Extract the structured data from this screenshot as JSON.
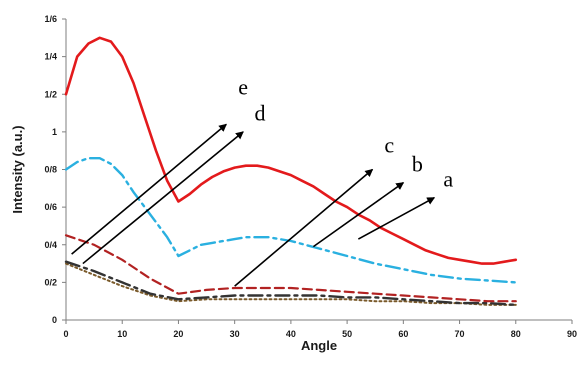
{
  "chart_data": {
    "type": "line",
    "title": "",
    "xlabel": "Angle",
    "ylabel": "Intensity (a.u.)",
    "xlim": [
      0,
      90
    ],
    "ylim": [
      0,
      1.6
    ],
    "x_ticks": [
      0,
      10,
      20,
      30,
      40,
      50,
      60,
      70,
      80,
      90
    ],
    "x_tick_labels": [
      "0",
      "10",
      "20",
      "30",
      "40",
      "50",
      "60",
      "70",
      "80",
      "90"
    ],
    "y_ticks": [
      0,
      0.2,
      0.4,
      0.6,
      0.8,
      1.0,
      1.2,
      1.4,
      1.6
    ],
    "y_tick_labels": [
      "0",
      "0/2",
      "0/4",
      "0/6",
      "0/8",
      "1",
      "1/2",
      "1/4",
      "1/6"
    ],
    "grid": false,
    "series": [
      {
        "name": "e",
        "color": "#e31a1c",
        "style": "solid",
        "x": [
          0,
          2,
          4,
          6,
          8,
          10,
          12,
          14,
          16,
          18,
          20,
          22,
          24,
          26,
          28,
          30,
          32,
          34,
          36,
          38,
          40,
          42,
          44,
          46,
          48,
          50,
          52,
          54,
          56,
          58,
          60,
          62,
          64,
          66,
          68,
          70,
          72,
          74,
          76,
          78,
          80
        ],
        "y": [
          1.2,
          1.4,
          1.47,
          1.5,
          1.48,
          1.4,
          1.26,
          1.08,
          0.9,
          0.74,
          0.63,
          0.67,
          0.72,
          0.76,
          0.79,
          0.81,
          0.82,
          0.82,
          0.81,
          0.79,
          0.77,
          0.74,
          0.71,
          0.67,
          0.63,
          0.6,
          0.56,
          0.53,
          0.49,
          0.46,
          0.43,
          0.4,
          0.37,
          0.35,
          0.33,
          0.32,
          0.31,
          0.3,
          0.3,
          0.31,
          0.32
        ]
      },
      {
        "name": "d",
        "color": "#2ab0e0",
        "style": "dash-dot",
        "x": [
          0,
          2,
          4,
          6,
          8,
          10,
          12,
          14,
          16,
          18,
          20,
          22,
          24,
          26,
          28,
          30,
          32,
          34,
          36,
          38,
          40,
          45,
          50,
          55,
          60,
          65,
          70,
          75,
          80
        ],
        "y": [
          0.8,
          0.84,
          0.86,
          0.86,
          0.83,
          0.77,
          0.68,
          0.6,
          0.52,
          0.44,
          0.34,
          0.37,
          0.4,
          0.41,
          0.42,
          0.43,
          0.44,
          0.44,
          0.44,
          0.43,
          0.42,
          0.38,
          0.34,
          0.3,
          0.27,
          0.24,
          0.22,
          0.21,
          0.2
        ]
      },
      {
        "name": "c",
        "color": "#b22222",
        "style": "dash",
        "x": [
          0,
          5,
          10,
          15,
          20,
          25,
          30,
          35,
          40,
          45,
          50,
          55,
          60,
          65,
          70,
          75,
          80
        ],
        "y": [
          0.45,
          0.4,
          0.32,
          0.22,
          0.14,
          0.16,
          0.17,
          0.17,
          0.17,
          0.16,
          0.15,
          0.14,
          0.13,
          0.12,
          0.11,
          0.1,
          0.1
        ]
      },
      {
        "name": "b",
        "color": "#333333",
        "style": "dash-dot",
        "x": [
          0,
          5,
          10,
          15,
          20,
          25,
          30,
          35,
          40,
          45,
          50,
          55,
          60,
          65,
          70,
          75,
          80
        ],
        "y": [
          0.31,
          0.26,
          0.2,
          0.14,
          0.11,
          0.12,
          0.13,
          0.13,
          0.13,
          0.13,
          0.12,
          0.12,
          0.11,
          0.1,
          0.09,
          0.09,
          0.08
        ]
      },
      {
        "name": "a",
        "color": "#7a5a2a",
        "style": "dot",
        "x": [
          0,
          5,
          10,
          15,
          20,
          25,
          30,
          35,
          40,
          45,
          50,
          55,
          60,
          65,
          70,
          75,
          80
        ],
        "y": [
          0.3,
          0.24,
          0.18,
          0.13,
          0.1,
          0.11,
          0.11,
          0.11,
          0.11,
          0.11,
          0.11,
          0.1,
          0.1,
          0.09,
          0.09,
          0.08,
          0.08
        ]
      }
    ],
    "annotations": [
      {
        "text": "e",
        "arrow_from": [
          1,
          0.35
        ],
        "arrow_to": [
          28.5,
          1.04
        ],
        "label_at": [
          31.5,
          1.2
        ]
      },
      {
        "text": "d",
        "arrow_from": [
          3,
          0.3
        ],
        "arrow_to": [
          31.5,
          1.0
        ],
        "label_at": [
          34.5,
          1.06
        ]
      },
      {
        "text": "c",
        "arrow_from": [
          30,
          0.18
        ],
        "arrow_to": [
          54.5,
          0.8
        ],
        "label_at": [
          57.5,
          0.89
        ]
      },
      {
        "text": "b",
        "arrow_from": [
          44,
          0.39
        ],
        "arrow_to": [
          60,
          0.73
        ],
        "label_at": [
          62.5,
          0.79
        ]
      },
      {
        "text": "a",
        "arrow_from": [
          52,
          0.43
        ],
        "arrow_to": [
          65.5,
          0.65
        ],
        "label_at": [
          68,
          0.71
        ]
      }
    ]
  }
}
